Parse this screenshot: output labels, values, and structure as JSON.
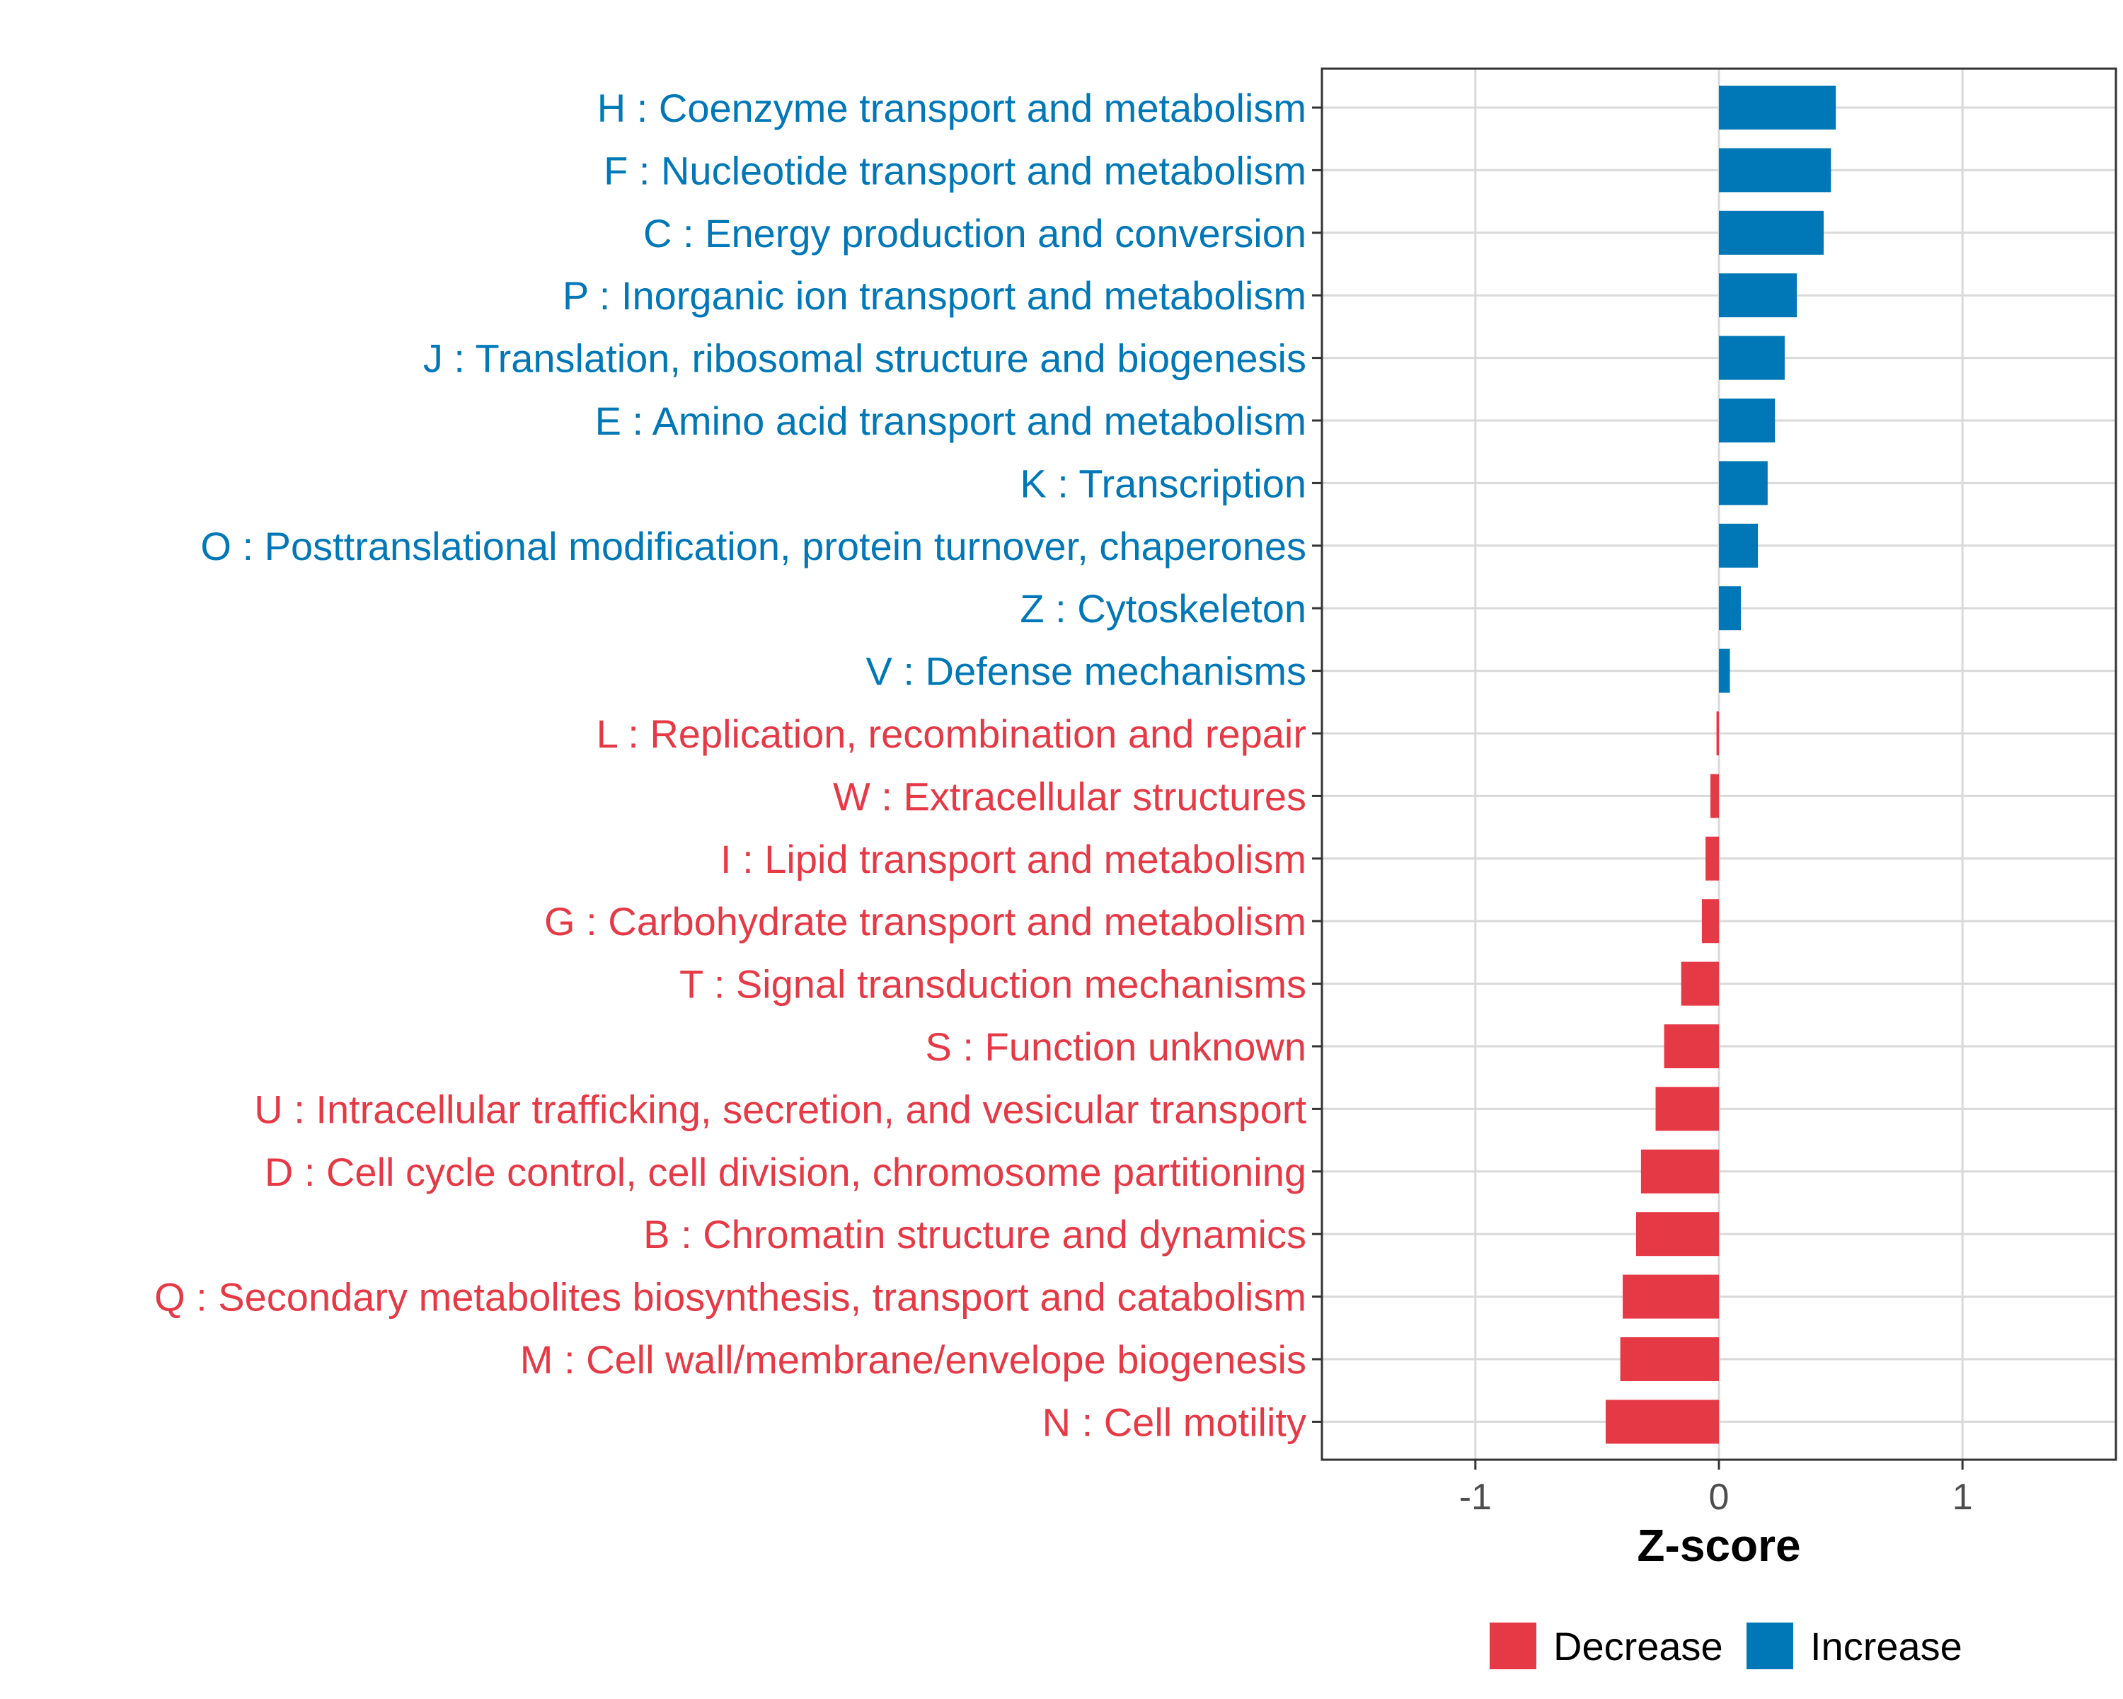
{
  "chart_data": {
    "type": "bar",
    "orientation": "horizontal",
    "xlabel": "Z-score",
    "ylabel": "",
    "xlim": [
      -1.63,
      1.63
    ],
    "xticks": [
      -1,
      0,
      1
    ],
    "xtick_labels": [
      "-1",
      "0",
      "1"
    ],
    "grid": true,
    "legend_position": "bottom",
    "colors": {
      "Decrease": "#e63946",
      "Increase": "#0077b6"
    },
    "legend": [
      {
        "label": "Decrease",
        "color": "#e63946"
      },
      {
        "label": "Increase",
        "color": "#0077b6"
      }
    ],
    "categories": [
      "H : Coenzyme transport and metabolism",
      "F : Nucleotide transport and metabolism",
      "C : Energy production and conversion",
      "P : Inorganic ion transport and metabolism",
      "J : Translation, ribosomal structure and biogenesis",
      "E : Amino acid transport and metabolism",
      "K : Transcription",
      "O : Posttranslational modification, protein turnover, chaperones",
      "Z : Cytoskeleton",
      "V : Defense mechanisms",
      "L : Replication, recombination and repair",
      "W : Extracellular structures",
      "I : Lipid transport and metabolism",
      "G : Carbohydrate transport and metabolism",
      "T : Signal transduction mechanisms",
      "S : Function unknown",
      "U : Intracellular trafficking, secretion, and vesicular transport",
      "D : Cell cycle control, cell division, chromosome partitioning",
      "B : Chromatin structure and dynamics",
      "Q : Secondary metabolites biosynthesis, transport and catabolism",
      "M : Cell wall/membrane/envelope biogenesis",
      "N : Cell motility"
    ],
    "values": [
      0.48,
      0.46,
      0.43,
      0.32,
      0.27,
      0.23,
      0.2,
      0.16,
      0.09,
      0.045,
      -0.01,
      -0.035,
      -0.055,
      -0.07,
      -0.155,
      -0.225,
      -0.26,
      -0.32,
      -0.34,
      -0.395,
      -0.405,
      -0.465
    ],
    "groups": [
      "Increase",
      "Increase",
      "Increase",
      "Increase",
      "Increase",
      "Increase",
      "Increase",
      "Increase",
      "Increase",
      "Increase",
      "Decrease",
      "Decrease",
      "Decrease",
      "Decrease",
      "Decrease",
      "Decrease",
      "Decrease",
      "Decrease",
      "Decrease",
      "Decrease",
      "Decrease",
      "Decrease"
    ]
  }
}
